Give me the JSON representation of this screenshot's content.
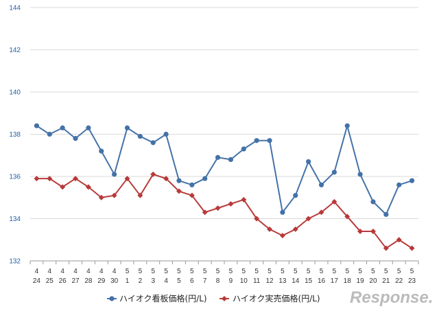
{
  "chart_data": {
    "type": "line",
    "title": "",
    "xlabel": "",
    "ylabel": "",
    "ylim": [
      132,
      144
    ],
    "y_ticks": [
      "132",
      "134",
      "136",
      "138",
      "140",
      "142",
      "144"
    ],
    "grid": true,
    "legend_position": "bottom",
    "categories": [
      {
        "month": "4",
        "day": "24"
      },
      {
        "month": "4",
        "day": "25"
      },
      {
        "month": "4",
        "day": "26"
      },
      {
        "month": "4",
        "day": "27"
      },
      {
        "month": "4",
        "day": "28"
      },
      {
        "month": "4",
        "day": "29"
      },
      {
        "month": "4",
        "day": "30"
      },
      {
        "month": "5",
        "day": "1"
      },
      {
        "month": "5",
        "day": "2"
      },
      {
        "month": "5",
        "day": "3"
      },
      {
        "month": "5",
        "day": "4"
      },
      {
        "month": "5",
        "day": "5"
      },
      {
        "month": "5",
        "day": "6"
      },
      {
        "month": "5",
        "day": "7"
      },
      {
        "month": "5",
        "day": "8"
      },
      {
        "month": "5",
        "day": "9"
      },
      {
        "month": "5",
        "day": "10"
      },
      {
        "month": "5",
        "day": "11"
      },
      {
        "month": "5",
        "day": "12"
      },
      {
        "month": "5",
        "day": "13"
      },
      {
        "month": "5",
        "day": "14"
      },
      {
        "month": "5",
        "day": "15"
      },
      {
        "month": "5",
        "day": "16"
      },
      {
        "month": "5",
        "day": "17"
      },
      {
        "month": "5",
        "day": "18"
      },
      {
        "month": "5",
        "day": "19"
      },
      {
        "month": "5",
        "day": "20"
      },
      {
        "month": "5",
        "day": "21"
      },
      {
        "month": "5",
        "day": "22"
      },
      {
        "month": "5",
        "day": "23"
      }
    ],
    "series": [
      {
        "name": "ハイオク看板価格(円/L)",
        "color": "#4472a8",
        "marker": "circle",
        "values": [
          138.4,
          138.0,
          138.3,
          137.8,
          138.3,
          137.2,
          136.1,
          138.3,
          137.9,
          137.6,
          138.0,
          135.8,
          135.6,
          135.9,
          136.9,
          136.8,
          137.3,
          137.7,
          137.7,
          134.3,
          135.1,
          136.7,
          135.6,
          136.2,
          138.4,
          136.1,
          134.8,
          134.2,
          135.6,
          135.8
        ]
      },
      {
        "name": "ハイオク実売価格(円/L)",
        "color": "#b83a3a",
        "marker": "diamond",
        "values": [
          135.9,
          135.9,
          135.5,
          135.9,
          135.5,
          135.0,
          135.1,
          135.9,
          135.1,
          136.1,
          135.9,
          135.3,
          135.1,
          134.3,
          134.5,
          134.7,
          134.9,
          134.0,
          133.5,
          133.2,
          133.5,
          134.0,
          134.3,
          134.8,
          134.1,
          133.4,
          133.4,
          132.6,
          133.0,
          132.6
        ]
      }
    ]
  },
  "watermark": "Response."
}
